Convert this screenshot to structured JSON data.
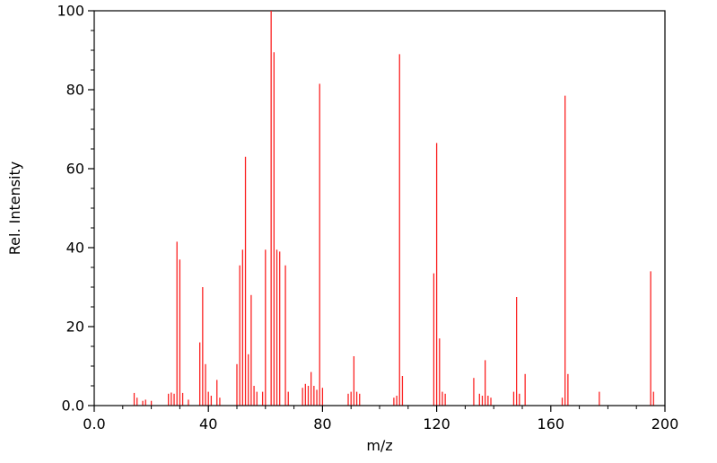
{
  "figure": {
    "background_color": "#ffffff"
  },
  "chart_data": {
    "type": "bar",
    "variant": "mass-spectrum-stick-plot",
    "title": "",
    "xlabel": "m/z",
    "ylabel": "Rel. Intensity",
    "xlim": [
      0,
      200
    ],
    "ylim": [
      0,
      100
    ],
    "grid": false,
    "legend": false,
    "frame_color": "#000000",
    "tick_label_color": "#000000",
    "x_major_ticks": [
      0,
      40,
      80,
      120,
      160,
      200
    ],
    "x_tick_labels": [
      "0.0",
      "40",
      "80",
      "120",
      "160",
      "200"
    ],
    "x_minor_step": 10,
    "y_major_ticks": [
      0,
      20,
      40,
      60,
      80,
      100
    ],
    "y_tick_labels": [
      "0.0",
      "20",
      "40",
      "60",
      "80",
      "100"
    ],
    "y_minor_step": 5,
    "series": [
      {
        "name": "peaks",
        "color": "#fb2222",
        "data": [
          [
            14,
            3.2
          ],
          [
            15,
            2.0
          ],
          [
            17,
            1.2
          ],
          [
            18,
            1.5
          ],
          [
            20,
            1.2
          ],
          [
            26,
            3.0
          ],
          [
            27,
            3.3
          ],
          [
            28,
            3.0
          ],
          [
            29,
            41.5
          ],
          [
            30,
            37.0
          ],
          [
            31,
            3.2
          ],
          [
            33,
            1.5
          ],
          [
            37,
            16.0
          ],
          [
            38,
            30.0
          ],
          [
            39,
            10.5
          ],
          [
            40,
            3.5
          ],
          [
            41,
            2.5
          ],
          [
            43,
            6.5
          ],
          [
            44,
            2.0
          ],
          [
            50,
            10.5
          ],
          [
            51,
            35.5
          ],
          [
            52,
            39.5
          ],
          [
            53,
            63.0
          ],
          [
            54,
            13.0
          ],
          [
            55,
            28.0
          ],
          [
            56,
            5.0
          ],
          [
            57,
            3.5
          ],
          [
            59,
            3.5
          ],
          [
            60,
            39.5
          ],
          [
            62,
            100.0
          ],
          [
            63,
            89.5
          ],
          [
            64,
            39.5
          ],
          [
            65,
            39.0
          ],
          [
            67,
            35.5
          ],
          [
            68,
            3.5
          ],
          [
            73,
            4.5
          ],
          [
            74,
            5.5
          ],
          [
            75,
            5.0
          ],
          [
            76,
            8.5
          ],
          [
            77,
            5.0
          ],
          [
            78,
            4.0
          ],
          [
            79,
            81.5
          ],
          [
            80,
            4.5
          ],
          [
            89,
            3.0
          ],
          [
            90,
            3.5
          ],
          [
            91,
            12.5
          ],
          [
            92,
            3.5
          ],
          [
            93,
            3.0
          ],
          [
            105,
            2.0
          ],
          [
            106,
            2.5
          ],
          [
            107,
            89.0
          ],
          [
            108,
            7.5
          ],
          [
            119,
            33.5
          ],
          [
            120,
            66.5
          ],
          [
            121,
            17.0
          ],
          [
            122,
            3.5
          ],
          [
            123,
            3.0
          ],
          [
            133,
            7.0
          ],
          [
            135,
            3.0
          ],
          [
            136,
            2.5
          ],
          [
            137,
            11.5
          ],
          [
            138,
            2.5
          ],
          [
            139,
            2.0
          ],
          [
            147,
            3.5
          ],
          [
            148,
            27.5
          ],
          [
            149,
            3.0
          ],
          [
            151,
            8.0
          ],
          [
            164,
            2.0
          ],
          [
            165,
            78.5
          ],
          [
            166,
            8.0
          ],
          [
            177,
            3.5
          ],
          [
            195,
            34.0
          ],
          [
            196,
            3.5
          ]
        ]
      }
    ]
  }
}
